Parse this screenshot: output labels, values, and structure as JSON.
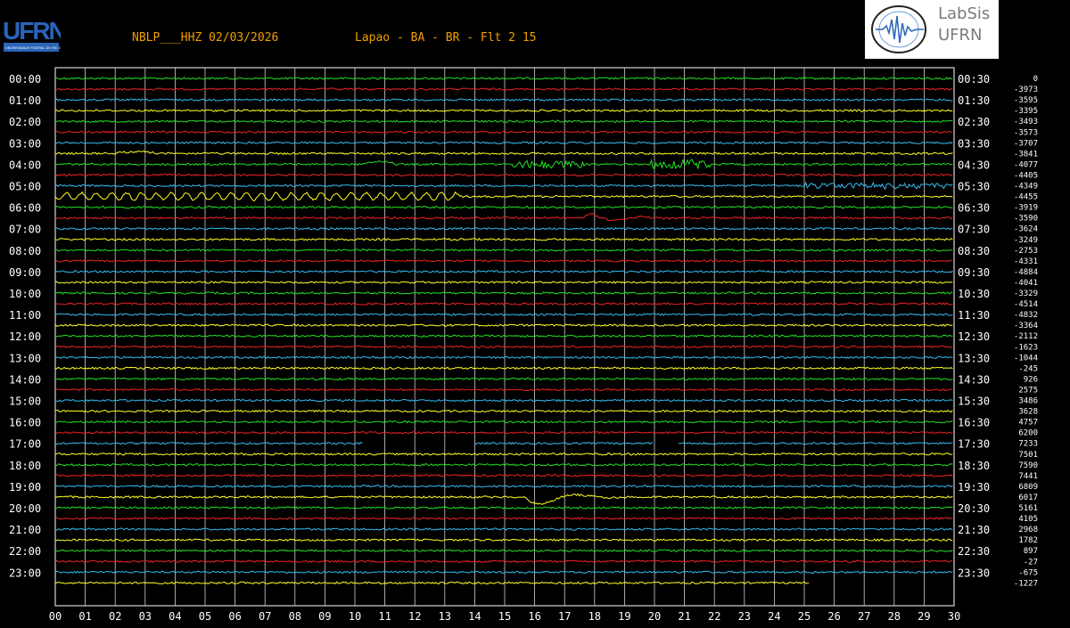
{
  "header": {
    "station": "NBLP___HHZ 02/03/2026",
    "location": "Lapao - BA - BR - Flt 2 15"
  },
  "logos": {
    "left": {
      "text": "UFRN",
      "subtitle": "UNIVERSIDADE FEDERAL DO RIO GRANDE DO NORTE"
    },
    "right": {
      "line1": "LabSis",
      "line2": "UFRN"
    }
  },
  "colors": {
    "background": "#000000",
    "grid": "#ffffff",
    "header": "#f0a000",
    "trace_cycle": [
      "#22e022",
      "#ee2222",
      "#33bbee",
      "#ffff22"
    ]
  },
  "chart_data": {
    "type": "line",
    "title": "NBLP___HHZ 02/03/2026",
    "subtitle": "Lapao - BA - BR - Flt 2 15",
    "x_ticks": [
      "00",
      "01",
      "02",
      "03",
      "04",
      "05",
      "06",
      "07",
      "08",
      "09",
      "10",
      "11",
      "12",
      "13",
      "14",
      "15",
      "16",
      "17",
      "18",
      "19",
      "20",
      "21",
      "22",
      "23",
      "24",
      "25",
      "26",
      "27",
      "28",
      "29",
      "30"
    ],
    "xlim": [
      0,
      30
    ],
    "left_labels": [
      "00:00",
      "01:00",
      "02:00",
      "03:00",
      "04:00",
      "05:00",
      "06:00",
      "07:00",
      "08:00",
      "09:00",
      "10:00",
      "11:00",
      "12:00",
      "13:00",
      "14:00",
      "15:00",
      "16:00",
      "17:00",
      "18:00",
      "19:00",
      "20:00",
      "21:00",
      "22:00",
      "23:00"
    ],
    "right_labels": [
      "00:30",
      "01:30",
      "02:30",
      "03:30",
      "04:30",
      "05:30",
      "06:30",
      "07:30",
      "08:30",
      "09:30",
      "10:30",
      "11:30",
      "12:30",
      "13:30",
      "14:30",
      "15:30",
      "16:30",
      "17:30",
      "18:30",
      "19:30",
      "20:30",
      "21:30",
      "22:30",
      "23:30"
    ],
    "offsets": [
      "0",
      "-3973",
      "-3595",
      "-3395",
      "-3493",
      "-3573",
      "-3707",
      "-3841",
      "-4077",
      "-4405",
      "-4349",
      "-4455",
      "-3919",
      "-3590",
      "-3624",
      "-3249",
      "-2753",
      "-4331",
      "-4884",
      "-4041",
      "-3329",
      "-4514",
      "-4832",
      "-3364",
      "-2112",
      "-1623",
      "-1044",
      "-245",
      "926",
      "2575",
      "3486",
      "3628",
      "4757",
      "6200",
      "7233",
      "7501",
      "7590",
      "7441",
      "6809",
      "6017",
      "5161",
      "4105",
      "2968",
      "1782",
      "897",
      "-27",
      "-675",
      "-1227"
    ],
    "grid": true,
    "events": [
      {
        "trace": 7,
        "x": 2.7,
        "amp": 2,
        "width": 0.8,
        "type": "bump"
      },
      {
        "trace": 8,
        "x": 10.8,
        "amp": 3,
        "width": 0.6,
        "type": "bump"
      },
      {
        "trace": 8,
        "x": 16.5,
        "amp": 4,
        "width": 1.2,
        "type": "burst"
      },
      {
        "trace": 8,
        "x": 20.9,
        "amp": 5,
        "width": 1.0,
        "type": "burst"
      },
      {
        "trace": 10,
        "x": 27.5,
        "amp": 3,
        "width": 2.5,
        "type": "burst"
      },
      {
        "trace": 11,
        "x": 0,
        "amp": 4,
        "width": 13.5,
        "type": "oscillation"
      },
      {
        "trace": 13,
        "x": 17.8,
        "amp": 10,
        "width": 2.0,
        "type": "step"
      },
      {
        "trace": 39,
        "x": 16.0,
        "amp": 10,
        "width": 2.0,
        "type": "wave"
      }
    ],
    "gaps": [
      {
        "trace": 34,
        "from": 10.3,
        "to": 14.0
      },
      {
        "trace": 34,
        "from": 20.0,
        "to": 20.8
      }
    ],
    "end_last_trace": 25.2
  }
}
